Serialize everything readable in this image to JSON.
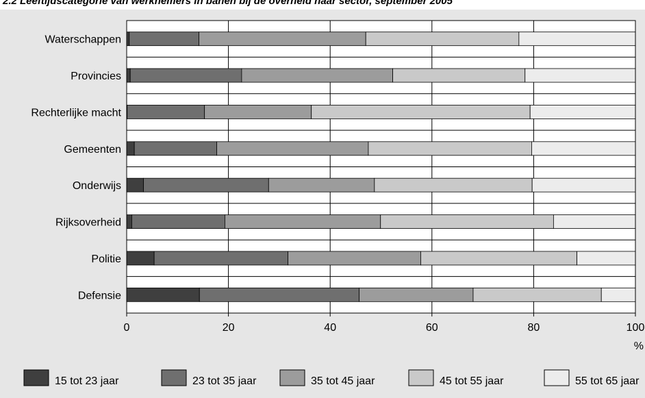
{
  "chart_data": {
    "type": "bar",
    "orientation": "horizontal",
    "stacked": true,
    "title": "2.2  Leeftijdscategorie van werknemers in banen bij de overheid naar sector, september 2005",
    "xlabel": "",
    "ylabel": "",
    "x_unit": "%",
    "xlim": [
      0,
      100
    ],
    "xticks": [
      "0",
      "20",
      "40",
      "60",
      "80",
      "100"
    ],
    "grid": true,
    "legend_position": "bottom",
    "categories": [
      "Waterschappen",
      "Provincies",
      "Rechterlijke macht",
      "Gemeenten",
      "Onderwijs",
      "Rijksoverheid",
      "Politie",
      "Defensie"
    ],
    "series": [
      {
        "name": "15 tot 23 jaar",
        "color": "#3f3f3f",
        "values": [
          0.5,
          0.7,
          0.1,
          1.5,
          3.3,
          1.0,
          5.4,
          14.3
        ]
      },
      {
        "name": "23 tot 35 jaar",
        "color": "#6f6f6f",
        "values": [
          13.7,
          21.9,
          15.2,
          16.2,
          24.6,
          18.3,
          26.3,
          31.4
        ]
      },
      {
        "name": "35 tot 45 jaar",
        "color": "#9c9c9c",
        "values": [
          32.8,
          29.7,
          21.0,
          29.8,
          20.8,
          30.6,
          26.1,
          22.4
        ]
      },
      {
        "name": "45 tot 55 jaar",
        "color": "#c9c9c9",
        "values": [
          30.1,
          26.0,
          43.0,
          32.1,
          31.0,
          34.0,
          30.7,
          25.2
        ]
      },
      {
        "name": "55 tot 65 jaar",
        "color": "#ececec",
        "values": [
          22.9,
          21.7,
          20.7,
          20.4,
          20.3,
          16.1,
          11.5,
          6.7
        ]
      }
    ]
  }
}
